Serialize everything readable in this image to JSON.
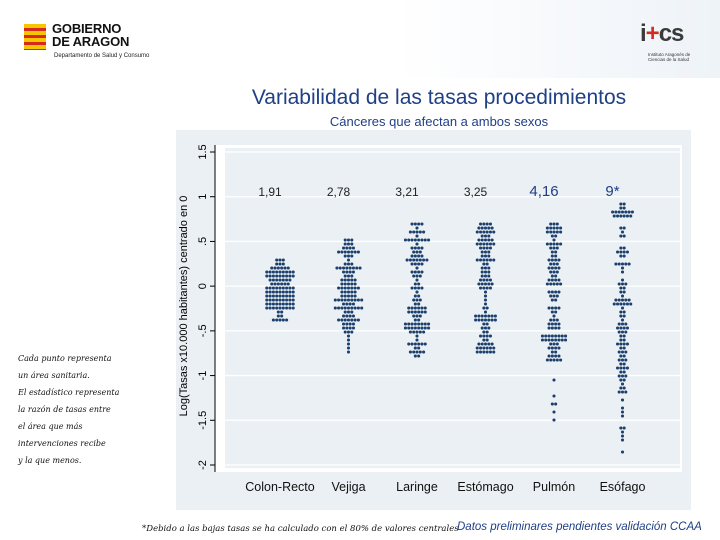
{
  "header": {
    "gov_name": "GOBIERNO\nDE ARAGON",
    "gov_dept": "Departamento de Salud y Consumo",
    "ics_mark_a": "i",
    "ics_mark_plus": "+",
    "ics_mark_b": "cs",
    "ics_sub": "Instituto Aragonés de Ciencias de la Salud"
  },
  "notes": {
    "line1": "Cada punto representa",
    "line2": "un área sanitaria.",
    "line3": "El estadístico representa",
    "line4": "la razón de tasas entre",
    "line5": "el área que más",
    "line6": "intervenciones recibe",
    "line7": "y la que menos."
  },
  "footnote": "*Debido a las bajas tasas se ha calculado con el 80% de valores centrales",
  "prelim": "Datos preliminares pendientes validación CCAA",
  "colors": {
    "dot": "#1c3f6e",
    "title": "#1f3f86",
    "grid": "#ffffff",
    "panel": "#eaf0f3"
  },
  "chart_data": {
    "type": "scatter",
    "subtype": "dot-strip",
    "title": "Variabilidad de las tasas procedimientos",
    "subtitle": "Cánceres que afectan a ambos sexos",
    "ylabel": "Log(Tasas x10.000 habitantes) centrado en 0",
    "xlabel": "",
    "ylim": [
      -2,
      1.5
    ],
    "yticks": [
      -2,
      -1.5,
      -1,
      -0.5,
      0,
      0.5,
      1,
      1.5
    ],
    "ytick_labels": [
      "-2",
      "-1.5",
      "-1",
      "-.5",
      "0",
      ".5",
      "1",
      "1.5"
    ],
    "grid": true,
    "categories": [
      "Colon-Recto",
      "Vejiga",
      "Laringe",
      "Estómago",
      "Pulmón",
      "Esófago"
    ],
    "ratio_labels": [
      "1,91",
      "2,78",
      "3,21",
      "3,25",
      "4,16",
      "9*"
    ],
    "ratio_style": [
      "small",
      "small",
      "small",
      "small",
      "large",
      "large"
    ],
    "series": [
      {
        "name": "Colon-Recto",
        "min": -0.4,
        "max": 0.3,
        "core": [
          -0.25,
          0.2
        ],
        "n": 120
      },
      {
        "name": "Vejiga",
        "min": -0.72,
        "max": 0.52,
        "core": [
          -0.45,
          0.45
        ],
        "n": 120
      },
      {
        "name": "Laringe",
        "min": -0.8,
        "max": 0.7,
        "core": [
          -0.65,
          0.6
        ],
        "n": 120
      },
      {
        "name": "Estómago",
        "min": -0.75,
        "max": 0.7,
        "core": [
          -0.65,
          0.6
        ],
        "n": 120
      },
      {
        "name": "Pulmón",
        "min": -1.5,
        "max": 0.7,
        "core": [
          -0.85,
          0.55
        ],
        "n": 120
      },
      {
        "name": "Esófago",
        "min": -1.85,
        "max": 0.9,
        "core": [
          -1.2,
          0.8
        ],
        "n": 120
      }
    ]
  }
}
